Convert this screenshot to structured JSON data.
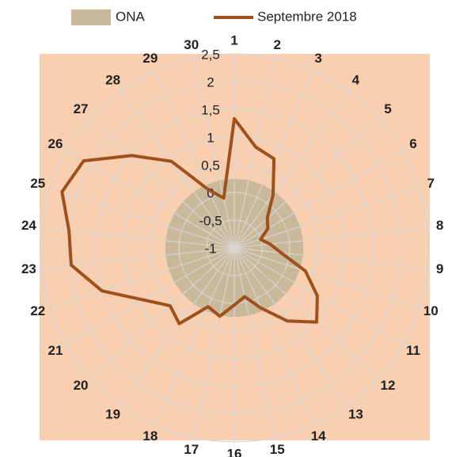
{
  "chart_data": {
    "type": "radar",
    "categories": [
      "1",
      "2",
      "3",
      "4",
      "5",
      "6",
      "7",
      "8",
      "9",
      "10",
      "11",
      "12",
      "13",
      "14",
      "15",
      "16",
      "17",
      "18",
      "19",
      "20",
      "21",
      "22",
      "23",
      "24",
      "25",
      "26",
      "27",
      "28",
      "29",
      "30"
    ],
    "series": [
      {
        "name": "ONA",
        "color": "#c9b99a",
        "fill": true,
        "values": [
          0.25,
          0.25,
          0.25,
          0.25,
          0.25,
          0.25,
          0.25,
          0.25,
          0.25,
          0.25,
          0.25,
          0.25,
          0.25,
          0.25,
          0.25,
          0.25,
          0.25,
          0.25,
          0.25,
          0.25,
          0.25,
          0.25,
          0.25,
          0.25,
          0.25,
          0.25,
          0.25,
          0.25,
          0.25,
          0.25
        ]
      },
      {
        "name": "Septembre 2018",
        "color": "#a0501a",
        "fill": false,
        "values": [
          1.33,
          0.86,
          0.76,
          0.19,
          -0.2,
          -0.3,
          -0.5,
          -0.35,
          -0.15,
          0.35,
          0.73,
          1.0,
          0.63,
          0.19,
          -0.1,
          0.03,
          0.26,
          0.16,
          0.69,
          0.56,
          0.88,
          1.51,
          1.96,
          2.0,
          2.27,
          2.14,
          1.49,
          0.93,
          0.15,
          -0.08
        ]
      }
    ],
    "ylim": [
      -1,
      2.5
    ],
    "yticks": [
      -1,
      {
        "value": -0.5,
        "label": "-0,5"
      },
      0,
      {
        "value": 0.5,
        "label": "0,5"
      },
      1,
      {
        "value": 1.5,
        "label": "1,5"
      },
      2,
      {
        "value": 2.5,
        "label": "2,5"
      }
    ],
    "grid": true
  }
}
